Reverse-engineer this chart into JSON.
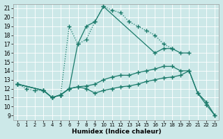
{
  "xlabel": "Humidex (Indice chaleur)",
  "bg_color": "#cce8e8",
  "line_color": "#1a7a6a",
  "xlim": [
    -0.5,
    23.5
  ],
  "ylim": [
    8.5,
    21.5
  ],
  "xticks": [
    0,
    1,
    2,
    3,
    4,
    5,
    6,
    7,
    8,
    9,
    10,
    11,
    12,
    13,
    14,
    15,
    16,
    17,
    18,
    19,
    20,
    21,
    22,
    23
  ],
  "yticks": [
    9,
    10,
    11,
    12,
    13,
    14,
    15,
    16,
    17,
    18,
    19,
    20,
    21
  ],
  "series": [
    {
      "x": [
        0,
        1,
        2,
        3,
        4,
        5,
        6,
        7,
        8,
        9,
        10,
        11,
        12,
        13,
        14,
        15,
        16,
        17,
        18
      ],
      "y": [
        12.5,
        12.0,
        11.8,
        11.8,
        11.0,
        11.3,
        19.0,
        17.0,
        17.5,
        19.5,
        21.2,
        20.8,
        20.5,
        19.5,
        19.0,
        18.5,
        18.0,
        17.0,
        16.5
      ],
      "linestyle": ":"
    },
    {
      "x": [
        0,
        3,
        4,
        5,
        6,
        7,
        8,
        9,
        10,
        16,
        17,
        18,
        19,
        20
      ],
      "y": [
        12.5,
        11.8,
        11.0,
        11.3,
        12.0,
        17.0,
        19.0,
        19.5,
        21.2,
        16.0,
        16.5,
        16.5,
        16.0,
        16.0
      ],
      "linestyle": "-"
    },
    {
      "x": [
        0,
        3,
        4,
        5,
        6,
        7,
        8,
        9,
        10,
        11,
        12,
        13,
        14,
        15,
        16,
        17,
        18,
        19,
        20,
        21,
        22,
        23
      ],
      "y": [
        12.5,
        11.8,
        11.0,
        11.3,
        12.0,
        12.2,
        12.3,
        12.5,
        13.0,
        13.3,
        13.5,
        13.5,
        13.8,
        14.0,
        14.2,
        14.5,
        14.5,
        14.0,
        14.0,
        11.5,
        10.5,
        9.0
      ],
      "linestyle": "-"
    },
    {
      "x": [
        0,
        3,
        4,
        5,
        6,
        7,
        8,
        9,
        10,
        11,
        12,
        13,
        14,
        15,
        16,
        17,
        18,
        19,
        20,
        21,
        22,
        23
      ],
      "y": [
        12.5,
        11.8,
        11.0,
        11.3,
        12.0,
        12.2,
        12.0,
        11.5,
        11.8,
        12.0,
        12.2,
        12.3,
        12.5,
        12.8,
        13.0,
        13.2,
        13.3,
        13.5,
        14.0,
        11.5,
        10.2,
        9.0
      ],
      "linestyle": "-"
    }
  ]
}
